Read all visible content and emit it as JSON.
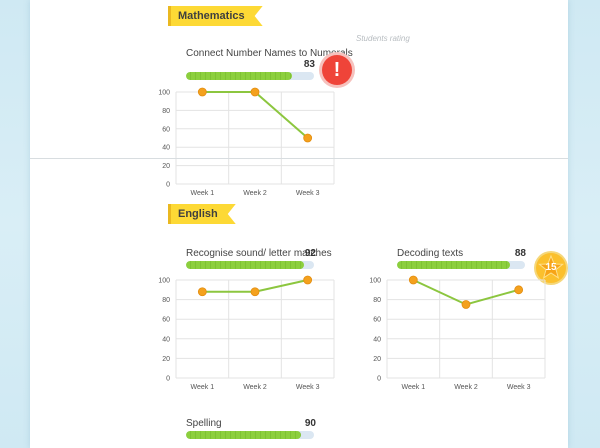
{
  "subjects": [
    {
      "name": "Mathematics",
      "rating_caption": "Students rating",
      "skills": [
        {
          "title": "Connect Number Names to Numerals",
          "score": "83",
          "progress": 0.83,
          "badge": {
            "type": "alert",
            "icon": "exclamation-icon",
            "text": "!",
            "color": "#ef4439"
          },
          "chart_data": {
            "type": "line",
            "categories": [
              "Week 1",
              "Week 2",
              "Week 3"
            ],
            "values": [
              100,
              100,
              50
            ],
            "yticks": [
              "100",
              "80",
              "60",
              "40",
              "20",
              "0"
            ],
            "ylim": [
              0,
              100
            ]
          }
        }
      ]
    },
    {
      "name": "English",
      "skills": [
        {
          "title": "Recognise sound/ letter matches",
          "score": "92",
          "progress": 0.92,
          "chart_data": {
            "type": "line",
            "categories": [
              "Week 1",
              "Week 2",
              "Week 3"
            ],
            "values": [
              88,
              88,
              100
            ],
            "yticks": [
              "100",
              "80",
              "60",
              "40",
              "20",
              "0"
            ],
            "ylim": [
              0,
              100
            ]
          }
        },
        {
          "title": "Decoding texts",
          "score": "88",
          "progress": 0.88,
          "badge": {
            "type": "star",
            "icon": "star-icon",
            "text": "15",
            "color": "#fbc02d"
          },
          "chart_data": {
            "type": "line",
            "categories": [
              "Week 1",
              "Week 2",
              "Week 3"
            ],
            "values": [
              100,
              75,
              90
            ],
            "yticks": [
              "100",
              "80",
              "60",
              "40",
              "20",
              "0"
            ],
            "ylim": [
              0,
              100
            ]
          }
        },
        {
          "title": "Spelling",
          "score": "90",
          "progress": 0.9
        }
      ]
    }
  ],
  "colors": {
    "line": "#8cc63f",
    "point": "#f4a11d",
    "ribbon": "#fdd935",
    "bar_fill": "#8ccf3d",
    "bar_track": "#dbe7f2"
  }
}
